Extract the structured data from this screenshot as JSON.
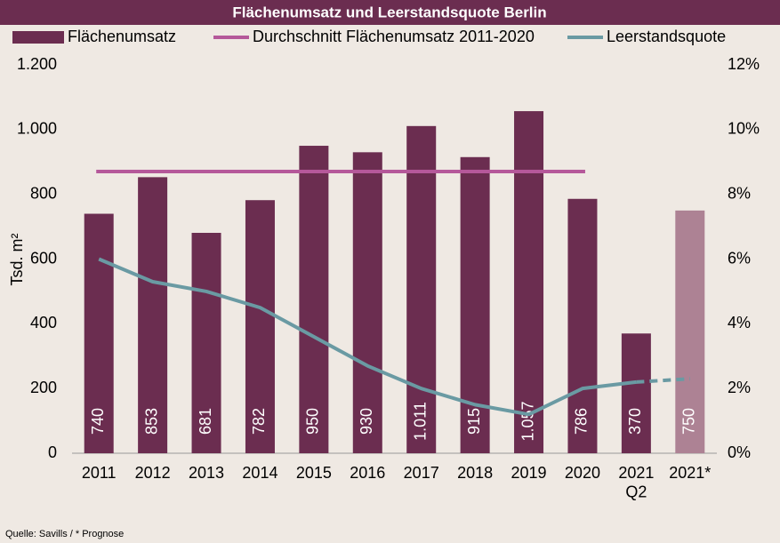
{
  "chart_data": {
    "type": "bar",
    "title": "Flächenumsatz und Leerstandsquote Berlin",
    "y_label": "Tsd. m²",
    "source": "Quelle: Savills / * Prognose",
    "categories": [
      "2011",
      "2012",
      "2013",
      "2014",
      "2015",
      "2016",
      "2017",
      "2018",
      "2019",
      "2020",
      "2021\nQ2",
      "2021*"
    ],
    "series": [
      {
        "name": "Flächenumsatz",
        "type": "bar",
        "color": "#6b2d50",
        "colors": [
          "#6b2d50",
          "#6b2d50",
          "#6b2d50",
          "#6b2d50",
          "#6b2d50",
          "#6b2d50",
          "#6b2d50",
          "#6b2d50",
          "#6b2d50",
          "#6b2d50",
          "#6b2d50",
          "#ad8294"
        ],
        "values": [
          740,
          853,
          681,
          782,
          950,
          930,
          1011,
          915,
          1057,
          786,
          370,
          750
        ],
        "value_labels": [
          "740",
          "853",
          "681",
          "782",
          "950",
          "930",
          "1.011",
          "915",
          "1.057",
          "786",
          "370",
          "750"
        ]
      },
      {
        "name": "Durchschnitt Flächenumsatz 2011-2020",
        "type": "line",
        "color": "#b5589a",
        "values": [
          870.5,
          870.5,
          870.5,
          870.5,
          870.5,
          870.5,
          870.5,
          870.5,
          870.5,
          870.5,
          null,
          null
        ]
      },
      {
        "name": "Leerstandsquote",
        "type": "line",
        "axis": "y2",
        "color": "#6a9aa3",
        "last_segment": "dashed",
        "values": [
          6.0,
          5.3,
          5.0,
          4.5,
          3.6,
          2.7,
          2.0,
          1.5,
          1.2,
          2.0,
          2.2,
          2.3
        ]
      }
    ],
    "ylim": [
      0,
      1200
    ],
    "yticks": [
      0,
      200,
      400,
      600,
      800,
      {
        "value": 1000,
        "label": "1.000"
      },
      {
        "value": 1200,
        "label": "1.200"
      }
    ],
    "y2lim": [
      0,
      12
    ],
    "y2ticks": [
      {
        "value": 0,
        "label": "0%"
      },
      {
        "value": 2,
        "label": "2%"
      },
      {
        "value": 4,
        "label": "4%"
      },
      {
        "value": 6,
        "label": "6%"
      },
      {
        "value": 8,
        "label": "8%"
      },
      {
        "value": 10,
        "label": "10%"
      },
      {
        "value": 12,
        "label": "12%"
      }
    ],
    "legend": "top"
  }
}
